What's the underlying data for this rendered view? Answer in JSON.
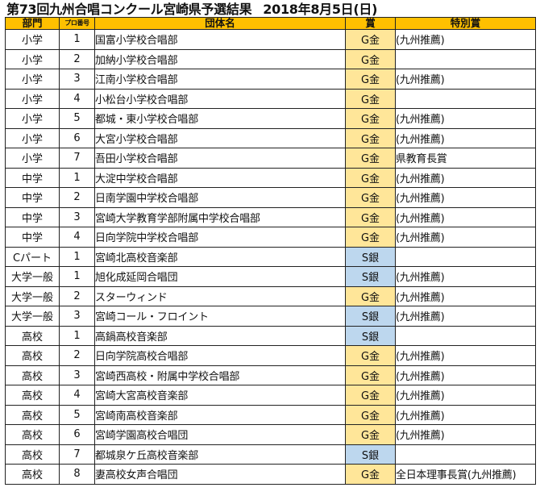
{
  "title": "第73回九州合唱コンクール宮崎県予選結果",
  "date": "2018年8月5日(日)",
  "headers": {
    "division": "部門",
    "program_no": "プロ番号",
    "group_name": "団体名",
    "award": "賞",
    "special_award": "特別賞"
  },
  "colors": {
    "header_bg": "#ffc000",
    "gold_bg": "#ffe699",
    "silver_bg": "#bdd7ee"
  },
  "rows": [
    {
      "division": "小学",
      "no": "1",
      "name": "国富小学校合唱部",
      "award": "G金",
      "award_type": "gold",
      "special": "(九州推薦)"
    },
    {
      "division": "小学",
      "no": "2",
      "name": "加納小学校合唱部",
      "award": "G金",
      "award_type": "gold",
      "special": ""
    },
    {
      "division": "小学",
      "no": "3",
      "name": "江南小学校合唱部",
      "award": "G金",
      "award_type": "gold",
      "special": "(九州推薦)"
    },
    {
      "division": "小学",
      "no": "4",
      "name": "小松台小学校合唱部",
      "award": "G金",
      "award_type": "gold",
      "special": ""
    },
    {
      "division": "小学",
      "no": "5",
      "name": "都城・東小学校合唱部",
      "award": "G金",
      "award_type": "gold",
      "special": "(九州推薦)"
    },
    {
      "division": "小学",
      "no": "6",
      "name": "大宮小学校合唱部",
      "award": "G金",
      "award_type": "gold",
      "special": "(九州推薦)"
    },
    {
      "division": "小学",
      "no": "7",
      "name": "吾田小学校合唱部",
      "award": "G金",
      "award_type": "gold",
      "special": "県教育長賞"
    },
    {
      "division": "中学",
      "no": "1",
      "name": "大淀中学校合唱部",
      "award": "G金",
      "award_type": "gold",
      "special": "(九州推薦)"
    },
    {
      "division": "中学",
      "no": "2",
      "name": "日南学園中学校合唱部",
      "award": "G金",
      "award_type": "gold",
      "special": "(九州推薦)"
    },
    {
      "division": "中学",
      "no": "3",
      "name": "宮崎大学教育学部附属中学校合唱部",
      "award": "G金",
      "award_type": "gold",
      "special": "(九州推薦)"
    },
    {
      "division": "中学",
      "no": "4",
      "name": "日向学院中学校合唱部",
      "award": "G金",
      "award_type": "gold",
      "special": "(九州推薦)"
    },
    {
      "division": "Cパート",
      "no": "1",
      "name": "宮崎北高校音楽部",
      "award": "S銀",
      "award_type": "silver",
      "special": ""
    },
    {
      "division": "大学一般",
      "no": "1",
      "name": "旭化成延岡合唱団",
      "award": "S銀",
      "award_type": "silver",
      "special": "(九州推薦)"
    },
    {
      "division": "大学一般",
      "no": "2",
      "name": "スターウィンド",
      "award": "G金",
      "award_type": "gold",
      "special": "(九州推薦)"
    },
    {
      "division": "大学一般",
      "no": "3",
      "name": "宮崎コール・フロイント",
      "award": "S銀",
      "award_type": "silver",
      "special": "(九州推薦)"
    },
    {
      "division": "高校",
      "no": "1",
      "name": "高鍋高校音楽部",
      "award": "S銀",
      "award_type": "silver",
      "special": ""
    },
    {
      "division": "高校",
      "no": "2",
      "name": "日向学院高校合唱部",
      "award": "G金",
      "award_type": "gold",
      "special": "(九州推薦)"
    },
    {
      "division": "高校",
      "no": "3",
      "name": "宮崎西高校・附属中学校合唱部",
      "award": "G金",
      "award_type": "gold",
      "special": "(九州推薦)"
    },
    {
      "division": "高校",
      "no": "4",
      "name": "宮崎大宮高校音楽部",
      "award": "G金",
      "award_type": "gold",
      "special": "(九州推薦)"
    },
    {
      "division": "高校",
      "no": "5",
      "name": "宮崎南高校音楽部",
      "award": "G金",
      "award_type": "gold",
      "special": "(九州推薦)"
    },
    {
      "division": "高校",
      "no": "6",
      "name": "宮崎学園高校合唱団",
      "award": "G金",
      "award_type": "gold",
      "special": "(九州推薦)"
    },
    {
      "division": "高校",
      "no": "7",
      "name": "都城泉ケ丘高校音楽部",
      "award": "S銀",
      "award_type": "silver",
      "special": ""
    },
    {
      "division": "高校",
      "no": "8",
      "name": "妻高校女声合唱団",
      "award": "G金",
      "award_type": "gold",
      "special": "全日本理事長賞(九州推薦)"
    }
  ]
}
